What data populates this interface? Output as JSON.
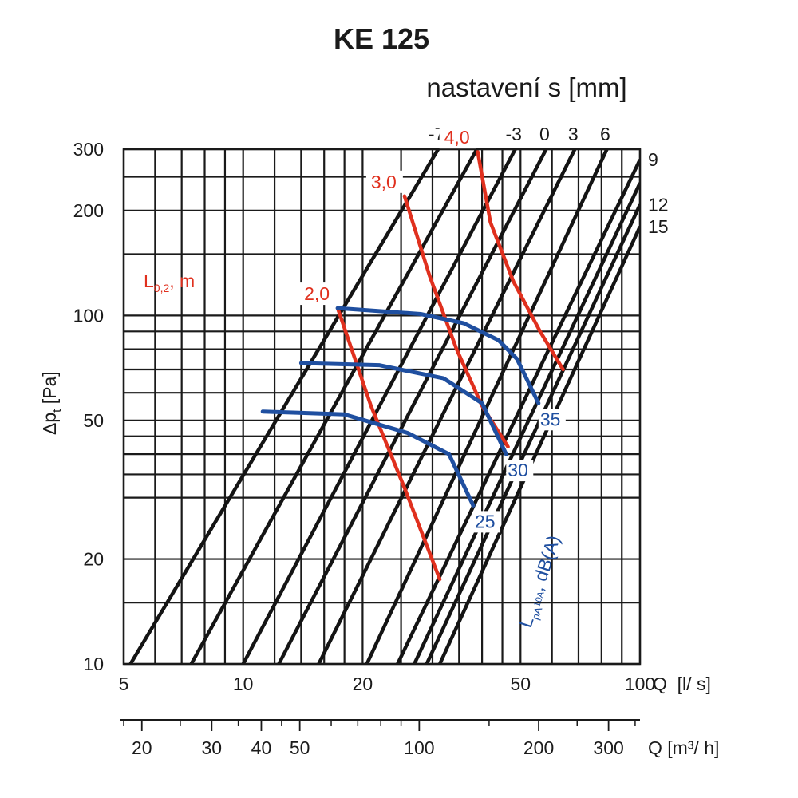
{
  "chart_data": {
    "type": "line",
    "title": "KE 125",
    "subtitle": "nastavení s [mm]",
    "xlabel": "Q  [l/ s]",
    "xlabel_secondary": "Q [m³/ h]",
    "ylabel_main": "Δp",
    "ylabel_sub": "t",
    "ylabel_unit": " [Pa]",
    "x_scale": "log",
    "y_scale": "log",
    "xlim": [
      5,
      100
    ],
    "ylim": [
      10,
      300
    ],
    "x_ticks": [
      {
        "value": 5,
        "label": "5"
      },
      {
        "value": 10,
        "label": "10"
      },
      {
        "value": 20,
        "label": "20"
      },
      {
        "value": 50,
        "label": "50"
      },
      {
        "value": 100,
        "label": "100"
      }
    ],
    "y_ticks": [
      {
        "value": 10,
        "label": "10"
      },
      {
        "value": 20,
        "label": "20"
      },
      {
        "value": 50,
        "label": "50"
      },
      {
        "value": 100,
        "label": "100"
      },
      {
        "value": 200,
        "label": "200"
      },
      {
        "value": 300,
        "label": "300"
      }
    ],
    "x_grid": [
      5,
      6,
      7,
      8,
      9,
      10,
      12,
      14,
      16,
      18,
      20,
      25,
      30,
      35,
      40,
      45,
      50,
      60,
      70,
      80,
      90,
      100
    ],
    "y_grid": [
      10,
      15,
      20,
      30,
      35,
      40,
      45,
      50,
      60,
      70,
      80,
      90,
      100,
      150,
      200,
      250,
      300
    ],
    "secondary_axis": {
      "unit": "m³/h",
      "ticks": [
        {
          "value": 20,
          "label": "20"
        },
        {
          "value": 30,
          "label": "30"
        },
        {
          "value": 40,
          "label": "40"
        },
        {
          "value": 50,
          "label": "50"
        },
        {
          "value": 100,
          "label": "100"
        },
        {
          "value": 200,
          "label": "200"
        },
        {
          "value": 300,
          "label": "300"
        }
      ],
      "minor": [
        18,
        25,
        35,
        45,
        60,
        70,
        80,
        90,
        150,
        250,
        350
      ]
    },
    "setting_curves": [
      {
        "label": "-7",
        "label_pos": "top",
        "points": [
          [
            5.2,
            10
          ],
          [
            31,
            300
          ]
        ]
      },
      {
        "label": "",
        "label_pos": "none",
        "points": [
          [
            7.4,
            10
          ],
          [
            38.8,
            300
          ]
        ]
      },
      {
        "label": "-3",
        "label_pos": "top",
        "points": [
          [
            10,
            10
          ],
          [
            48.5,
            300
          ]
        ]
      },
      {
        "label": "0",
        "label_pos": "top",
        "points": [
          [
            12.3,
            10
          ],
          [
            58,
            300
          ]
        ]
      },
      {
        "label": "3",
        "label_pos": "top",
        "points": [
          [
            15.5,
            10
          ],
          [
            68.5,
            300
          ]
        ]
      },
      {
        "label": "6",
        "label_pos": "top",
        "points": [
          [
            20.5,
            10
          ],
          [
            82.5,
            300
          ]
        ]
      },
      {
        "label": "9",
        "label_pos": "right",
        "points": [
          [
            24.5,
            10
          ],
          [
            100,
            280
          ]
        ]
      },
      {
        "label": "",
        "label_pos": "none",
        "points": [
          [
            27,
            10
          ],
          [
            100,
            240
          ]
        ]
      },
      {
        "label": "12",
        "label_pos": "right",
        "points": [
          [
            29,
            10
          ],
          [
            100,
            208
          ]
        ]
      },
      {
        "label": "15",
        "label_pos": "right",
        "points": [
          [
            31.3,
            10
          ],
          [
            100,
            180
          ]
        ]
      }
    ],
    "throw_label": {
      "main": "L",
      "sub": "0,2",
      "suffix": ", m"
    },
    "throw_curves": [
      {
        "label": "2,0",
        "points": [
          [
            17.3,
            105
          ],
          [
            21,
            55
          ],
          [
            25.5,
            32
          ],
          [
            31.3,
            17.5
          ]
        ]
      },
      {
        "label": "3,0",
        "points": [
          [
            25.5,
            220
          ],
          [
            29.5,
            130
          ],
          [
            34.5,
            80
          ],
          [
            40,
            55
          ],
          [
            46.5,
            42
          ]
        ]
      },
      {
        "label": "4,0",
        "points": [
          [
            39,
            295
          ],
          [
            42,
            185
          ],
          [
            48,
            125
          ],
          [
            56,
            90
          ],
          [
            64,
            70
          ]
        ]
      }
    ],
    "noise_label": {
      "main": "L",
      "sub": "pA",
      "sup": "10A",
      "suffix": ", dB(A)"
    },
    "noise_curves": [
      {
        "label": "35",
        "points": [
          [
            17.3,
            105
          ],
          [
            28,
            101
          ],
          [
            36,
            95
          ],
          [
            44,
            85
          ],
          [
            49,
            75
          ],
          [
            55.5,
            56
          ]
        ]
      },
      {
        "label": "30",
        "points": [
          [
            14,
            73
          ],
          [
            22,
            72
          ],
          [
            32,
            66
          ],
          [
            40,
            56
          ],
          [
            46,
            40
          ]
        ]
      },
      {
        "label": "25",
        "points": [
          [
            11.2,
            53
          ],
          [
            18,
            52
          ],
          [
            26,
            46
          ],
          [
            33,
            40
          ],
          [
            38,
            28.5
          ]
        ]
      }
    ],
    "colors": {
      "grid": "#1a1a1a",
      "setting": "#141414",
      "throw": "#e0301e",
      "noise": "#1f4fa0"
    }
  }
}
